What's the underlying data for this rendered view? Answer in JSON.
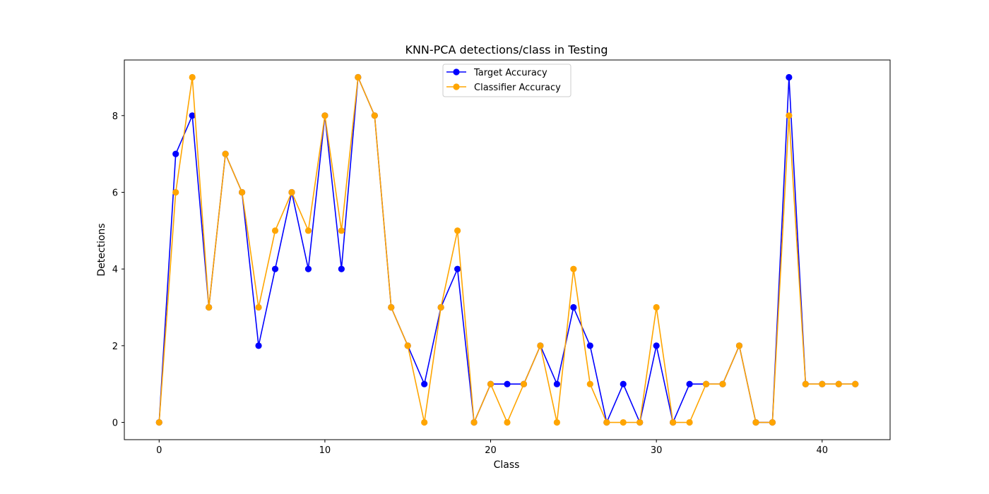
{
  "chart_data": {
    "type": "line",
    "title": "KNN-PCA detections/class in Testing",
    "xlabel": "Class",
    "ylabel": "Detections",
    "xlim": [
      -2.1,
      44.1
    ],
    "ylim": [
      -0.45,
      9.45
    ],
    "xticks": [
      0,
      10,
      20,
      30,
      40
    ],
    "yticks": [
      0,
      2,
      4,
      6,
      8
    ],
    "legend_position": "upper center",
    "x": [
      0,
      1,
      2,
      3,
      4,
      5,
      6,
      7,
      8,
      9,
      10,
      11,
      12,
      13,
      14,
      15,
      16,
      17,
      18,
      19,
      20,
      21,
      22,
      23,
      24,
      25,
      26,
      27,
      28,
      29,
      30,
      31,
      32,
      33,
      34,
      35,
      36,
      37,
      38,
      39,
      40,
      41,
      42
    ],
    "series": [
      {
        "name": "Target Accuracy",
        "color": "#0000ff",
        "values": [
          0,
          7,
          8,
          3,
          7,
          6,
          2,
          4,
          6,
          4,
          8,
          4,
          9,
          8,
          3,
          2,
          1,
          3,
          4,
          0,
          1,
          1,
          1,
          2,
          1,
          3,
          2,
          0,
          1,
          0,
          2,
          0,
          1,
          1,
          1,
          2,
          0,
          0,
          9,
          1,
          1,
          1,
          1
        ]
      },
      {
        "name": "Classifier Accuracy",
        "color": "#ffa500",
        "values": [
          0,
          6,
          9,
          3,
          7,
          6,
          3,
          5,
          6,
          5,
          8,
          5,
          9,
          8,
          3,
          2,
          0,
          3,
          5,
          0,
          1,
          0,
          1,
          2,
          0,
          4,
          1,
          0,
          0,
          0,
          3,
          0,
          0,
          1,
          1,
          2,
          0,
          0,
          8,
          1,
          1,
          1,
          1
        ]
      }
    ]
  }
}
